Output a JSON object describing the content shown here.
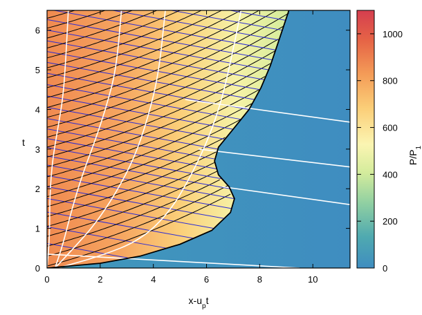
{
  "chart_data": {
    "type": "heatmap",
    "title": "",
    "xlabel": {
      "main": "x-u",
      "sub": "p",
      "tail": "t"
    },
    "ylabel": "t",
    "xlim": [
      0,
      11.4
    ],
    "ylim": [
      0,
      6.5
    ],
    "x_ticks": [
      0,
      2,
      4,
      6,
      8,
      10
    ],
    "y_ticks": [
      0,
      1,
      2,
      3,
      4,
      5,
      6
    ],
    "colorbar": {
      "label": {
        "main": "P/P",
        "sub": "1"
      },
      "range": [
        0,
        1100
      ],
      "ticks": [
        0,
        200,
        400,
        600,
        800,
        1000
      ],
      "colormap": [
        "#3f8dc0",
        "#4fa9b0",
        "#8fcfa2",
        "#d4ec9c",
        "#fbf5b2",
        "#fbce78",
        "#f49d58",
        "#e66546",
        "#d53e4f"
      ]
    },
    "shock_front": {
      "color": "#000000",
      "points": [
        [
          0,
          0
        ],
        [
          2,
          0.12
        ],
        [
          3.5,
          0.3
        ],
        [
          5,
          0.6
        ],
        [
          6.2,
          0.95
        ],
        [
          6.9,
          1.4
        ],
        [
          7.05,
          1.75
        ],
        [
          6.85,
          2.05
        ],
        [
          6.45,
          2.35
        ],
        [
          6.3,
          2.7
        ],
        [
          6.45,
          3.05
        ],
        [
          7.0,
          3.5
        ],
        [
          7.6,
          4.0
        ],
        [
          8.05,
          4.55
        ],
        [
          8.4,
          5.1
        ],
        [
          8.7,
          5.7
        ],
        [
          8.95,
          6.2
        ],
        [
          9.1,
          6.5
        ]
      ]
    },
    "characteristics": {
      "blue_color": "#2b2bd6",
      "black_color": "#000000",
      "spacing": 0.25
    },
    "white_curves": {
      "color": "#ffffff",
      "trajectories": [
        [
          [
            0,
            0
          ],
          [
            0.1,
            0.8
          ],
          [
            0.1,
            1.8
          ],
          [
            0.2,
            2.7
          ],
          [
            0.4,
            3.5
          ],
          [
            0.6,
            4.3
          ],
          [
            0.7,
            5.2
          ],
          [
            0.8,
            6.5
          ]
        ],
        [
          [
            0.3,
            0
          ],
          [
            0.6,
            0.6
          ],
          [
            0.9,
            1.4
          ],
          [
            1.3,
            2.3
          ],
          [
            1.8,
            3.2
          ],
          [
            2.2,
            4.0
          ],
          [
            2.6,
            5.0
          ],
          [
            2.8,
            6.5
          ]
        ],
        [
          [
            0.3,
            0
          ],
          [
            1.0,
            0.5
          ],
          [
            1.8,
            1.1
          ],
          [
            2.6,
            1.9
          ],
          [
            3.3,
            2.8
          ],
          [
            3.8,
            3.8
          ],
          [
            4.2,
            4.9
          ],
          [
            4.45,
            6.5
          ]
        ],
        [
          [
            0.4,
            0
          ],
          [
            2.0,
            0.3
          ],
          [
            3.5,
            0.7
          ],
          [
            4.6,
            1.4
          ],
          [
            5.4,
            2.3
          ],
          [
            6.1,
            3.3
          ],
          [
            6.6,
            4.3
          ],
          [
            7.0,
            5.5
          ],
          [
            7.3,
            6.5
          ]
        ]
      ],
      "slope_lines": [
        [
          [
            0,
            0.35
          ],
          [
            9.5,
            0.0
          ]
        ],
        [
          [
            6.6,
            2.05
          ],
          [
            11.4,
            1.6
          ]
        ],
        [
          [
            5.7,
            3.0
          ],
          [
            11.4,
            2.55
          ]
        ],
        [
          [
            5.2,
            4.25
          ],
          [
            11.4,
            3.68
          ]
        ]
      ]
    }
  }
}
